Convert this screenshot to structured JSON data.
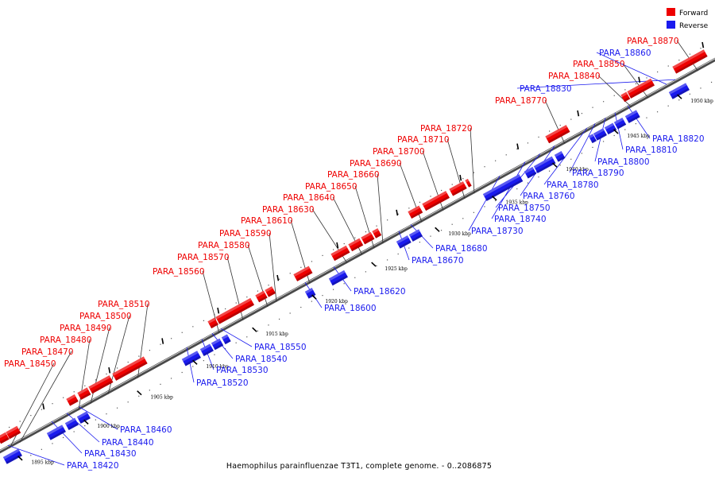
{
  "caption": "Haemophilus parainfluenzae T3T1, complete genome. - 0..2086875",
  "colors": {
    "forward": "#ee0000",
    "reverse": "#1a1aee",
    "axis": "#555555"
  },
  "legend": {
    "forward_label": "Forward",
    "reverse_label": "Reverse"
  },
  "ticks": [
    "1895 kbp",
    "1900 kbp",
    "1905 kbp",
    "1910 kbp",
    "1915 kbp",
    "1920 kbp",
    "1925 kbp",
    "1930 kbp",
    "1935 kbp",
    "1940 kbp",
    "1945 kbp",
    "1950 kbp"
  ],
  "genes": [
    {
      "id": "PARA_18420",
      "strand": "reverse"
    },
    {
      "id": "PARA_18430",
      "strand": "reverse"
    },
    {
      "id": "PARA_18440",
      "strand": "reverse"
    },
    {
      "id": "PARA_18450",
      "strand": "forward"
    },
    {
      "id": "PARA_18460",
      "strand": "reverse"
    },
    {
      "id": "PARA_18470",
      "strand": "forward"
    },
    {
      "id": "PARA_18480",
      "strand": "forward"
    },
    {
      "id": "PARA_18490",
      "strand": "forward"
    },
    {
      "id": "PARA_18500",
      "strand": "forward"
    },
    {
      "id": "PARA_18510",
      "strand": "forward"
    },
    {
      "id": "PARA_18520",
      "strand": "reverse"
    },
    {
      "id": "PARA_18530",
      "strand": "reverse"
    },
    {
      "id": "PARA_18540",
      "strand": "reverse"
    },
    {
      "id": "PARA_18550",
      "strand": "reverse"
    },
    {
      "id": "PARA_18560",
      "strand": "forward"
    },
    {
      "id": "PARA_18570",
      "strand": "forward"
    },
    {
      "id": "PARA_18580",
      "strand": "forward"
    },
    {
      "id": "PARA_18590",
      "strand": "forward"
    },
    {
      "id": "PARA_18600",
      "strand": "reverse"
    },
    {
      "id": "PARA_18610",
      "strand": "forward"
    },
    {
      "id": "PARA_18620",
      "strand": "reverse"
    },
    {
      "id": "PARA_18630",
      "strand": "forward"
    },
    {
      "id": "PARA_18640",
      "strand": "forward"
    },
    {
      "id": "PARA_18650",
      "strand": "forward"
    },
    {
      "id": "PARA_18660",
      "strand": "forward"
    },
    {
      "id": "PARA_18670",
      "strand": "reverse"
    },
    {
      "id": "PARA_18680",
      "strand": "reverse"
    },
    {
      "id": "PARA_18690",
      "strand": "forward"
    },
    {
      "id": "PARA_18700",
      "strand": "forward"
    },
    {
      "id": "PARA_18710",
      "strand": "forward"
    },
    {
      "id": "PARA_18720",
      "strand": "forward"
    },
    {
      "id": "PARA_18730",
      "strand": "reverse"
    },
    {
      "id": "PARA_18740",
      "strand": "reverse"
    },
    {
      "id": "PARA_18750",
      "strand": "reverse"
    },
    {
      "id": "PARA_18760",
      "strand": "reverse"
    },
    {
      "id": "PARA_18770",
      "strand": "forward"
    },
    {
      "id": "PARA_18780",
      "strand": "reverse"
    },
    {
      "id": "PARA_18790",
      "strand": "reverse"
    },
    {
      "id": "PARA_18800",
      "strand": "reverse"
    },
    {
      "id": "PARA_18810",
      "strand": "reverse"
    },
    {
      "id": "PARA_18820",
      "strand": "reverse"
    },
    {
      "id": "PARA_18830",
      "strand": "reverse"
    },
    {
      "id": "PARA_18840",
      "strand": "forward"
    },
    {
      "id": "PARA_18850",
      "strand": "forward"
    },
    {
      "id": "PARA_18860",
      "strand": "reverse"
    },
    {
      "id": "PARA_18870",
      "strand": "forward"
    }
  ]
}
